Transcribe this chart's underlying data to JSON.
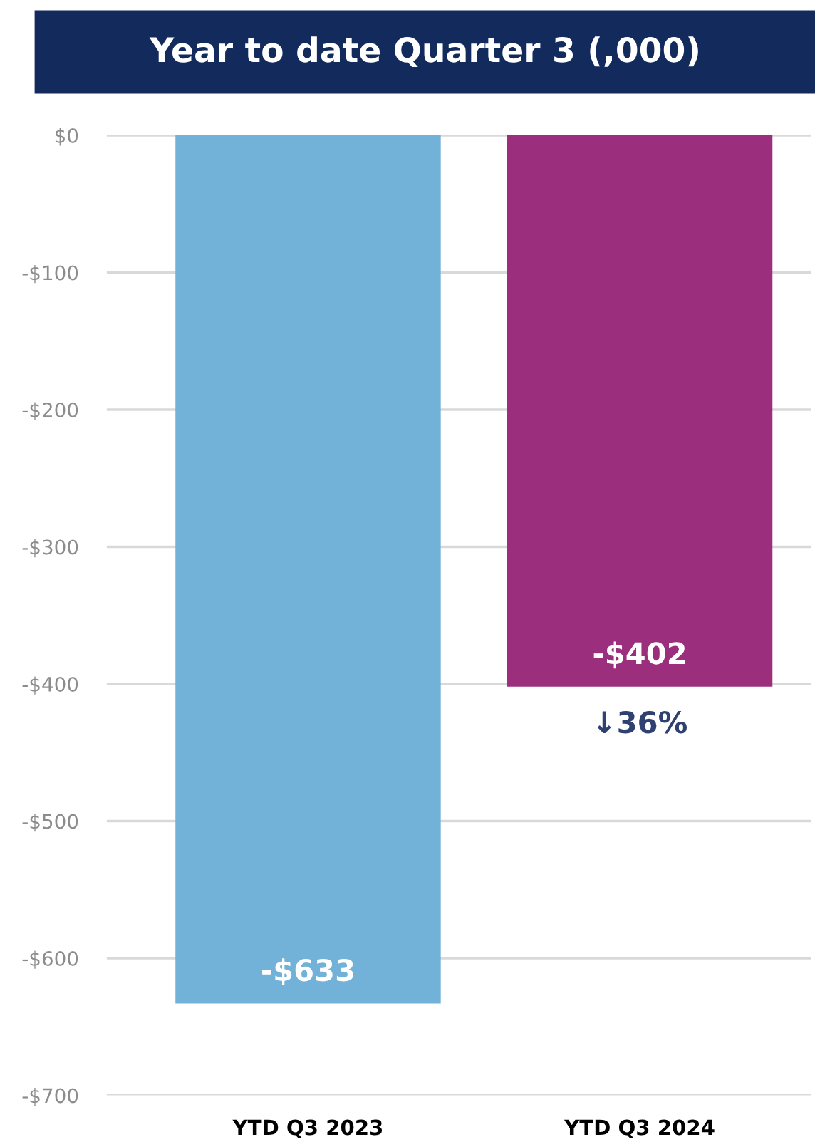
{
  "chart_data": {
    "type": "bar",
    "title": "Year to date Quarter 3 (,000)",
    "categories": [
      "YTD Q3 2023",
      "YTD Q3 2024"
    ],
    "values": [
      -633,
      -402
    ],
    "colors": [
      "#72b2d9",
      "#9b2f7d"
    ],
    "value_labels": [
      "-$633",
      "-$402"
    ],
    "ylim": [
      -700,
      0
    ],
    "yticks": [
      {
        "value": 0,
        "label": "$0"
      },
      {
        "value": -100,
        "label": "-$100"
      },
      {
        "value": -200,
        "label": "-$200"
      },
      {
        "value": -300,
        "label": "-$300"
      },
      {
        "value": -400,
        "label": "-$400"
      },
      {
        "value": -500,
        "label": "-$500"
      },
      {
        "value": -600,
        "label": "-$600"
      },
      {
        "value": -700,
        "label": "-$700"
      }
    ],
    "grid": "y",
    "annotations": [
      {
        "text": "↓36%",
        "x": "YTD Q3 2024",
        "y": -402
      }
    ]
  }
}
